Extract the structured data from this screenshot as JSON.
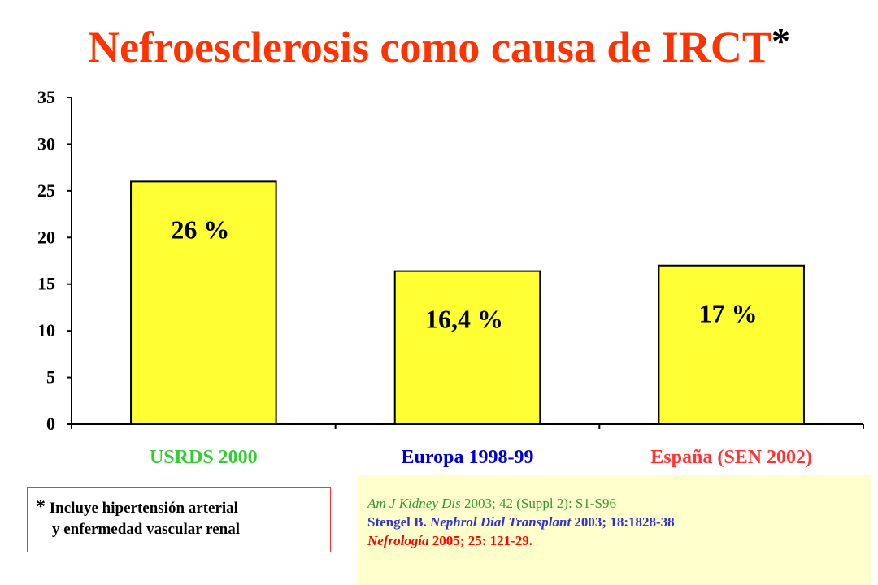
{
  "title": {
    "text": "Nefroesclerosis como causa de IRCT",
    "marker": "*"
  },
  "colors": {
    "title": "#ff3300",
    "bar_fill": "#ffff33",
    "cat_usrds": "#33cc33",
    "cat_europa": "#0000cc",
    "cat_espana": "#ff3333"
  },
  "chart_data": {
    "type": "bar",
    "title": "Nefroesclerosis como causa de IRCT*",
    "categories": [
      "USRDS 2000",
      "Europa 1998-99",
      "España (SEN 2002)"
    ],
    "values": [
      26,
      16.4,
      17
    ],
    "data_labels": [
      "26 %",
      "16,4 %",
      "17 %"
    ],
    "category_colors": [
      "#33cc33",
      "#0000cc",
      "#ff3333"
    ],
    "bar_color": "#ffff33",
    "xlabel": "",
    "ylabel": "",
    "ylim": [
      0,
      35
    ],
    "yticks": [
      0,
      5,
      10,
      15,
      20,
      25,
      30,
      35
    ],
    "grid": false,
    "legend": "none"
  },
  "footnote": {
    "marker": "*",
    "line1": "Incluye hipertensión arterial",
    "line2": "y enfermedad vascular renal"
  },
  "references": {
    "r1_journal": "Am J Kidney Dis",
    "r1_rest": " 2003; 42 (Suppl 2): S1-S96",
    "r2_author": "Stengel B. ",
    "r2_journal": "Nephrol Dial Transplant",
    "r2_rest": " 2003; 18:1828-38",
    "r3_journal": "Nefrología",
    "r3_rest": " 2005; 25: 121-29."
  }
}
